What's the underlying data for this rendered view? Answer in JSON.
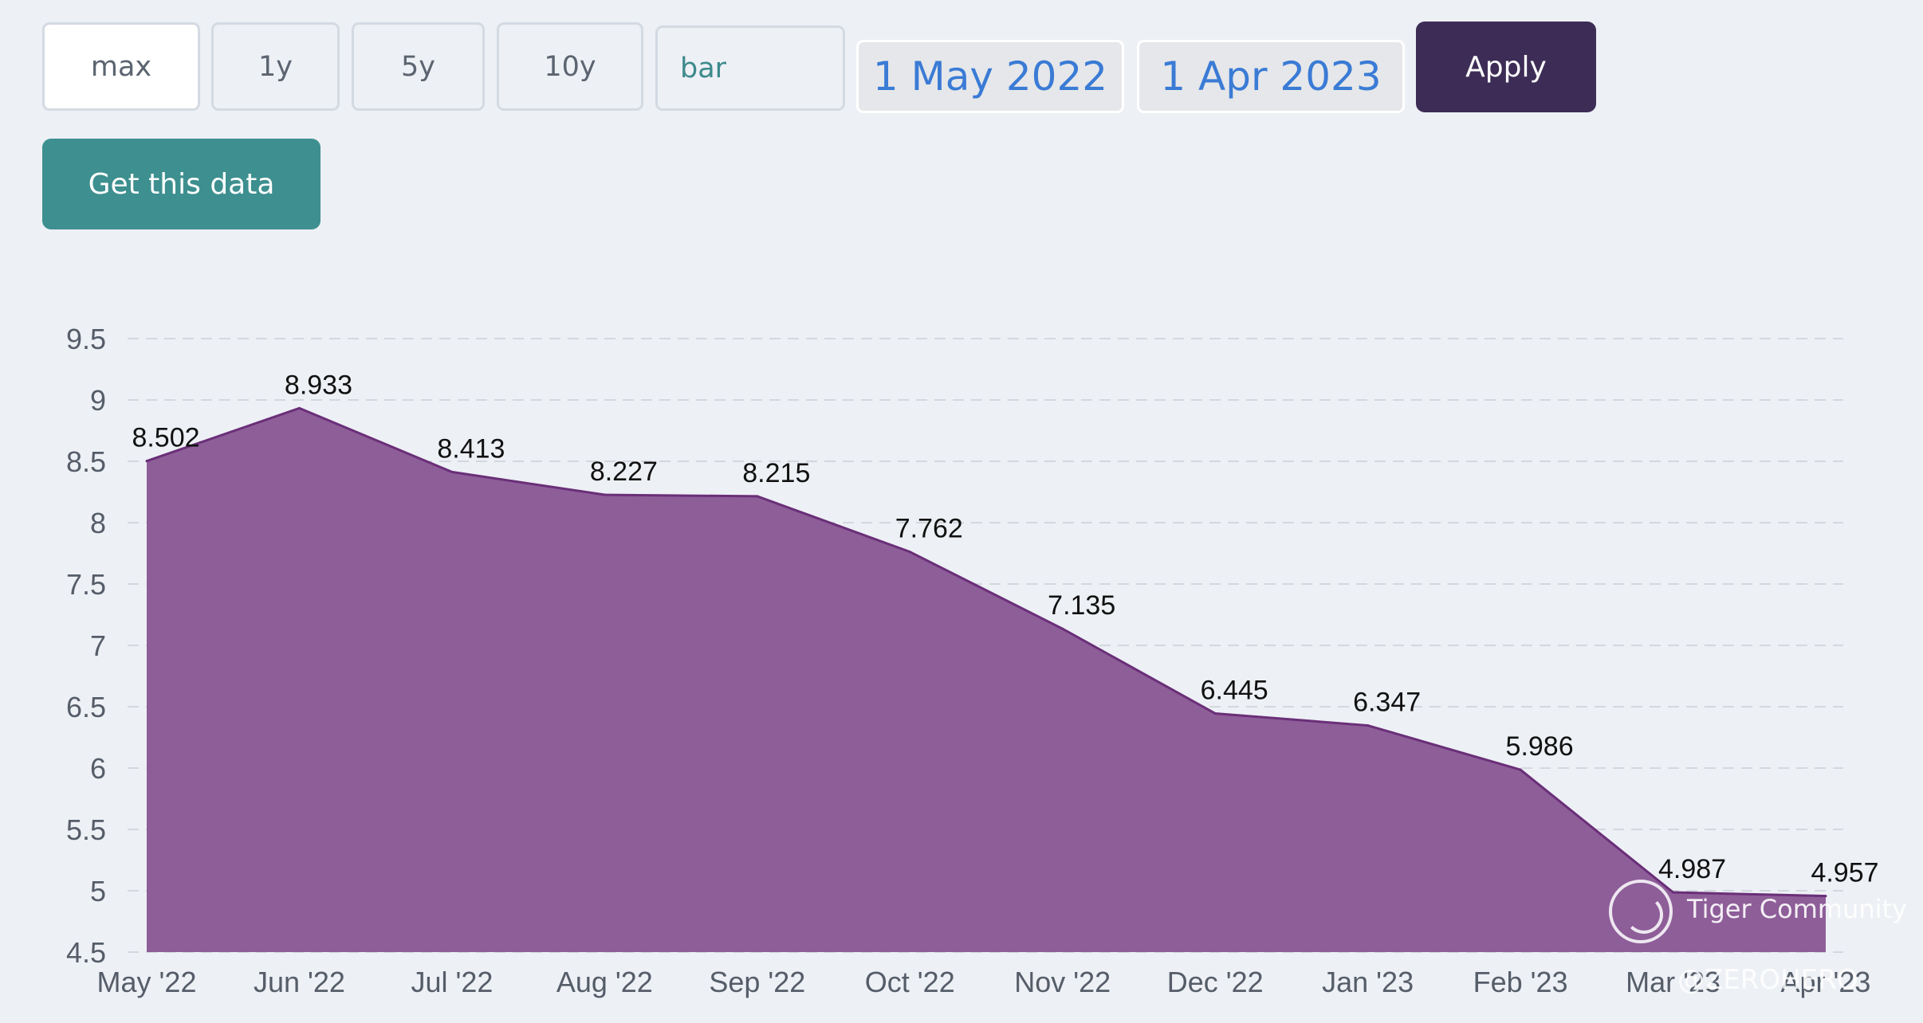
{
  "controls": {
    "ranges": [
      "max",
      "1y",
      "5y",
      "10y"
    ],
    "active_range": "max",
    "chart_type": "bar",
    "start_date": "1 May 2022",
    "end_date": "1 Apr 2023",
    "apply_label": "Apply",
    "get_data_label": "Get this data"
  },
  "colors": {
    "area_fill": "#8e5e99",
    "area_line": "#6a2f78",
    "grid": "#d3d8df",
    "tick_text": "#555d69",
    "label_text": "#111111"
  },
  "chart_data": {
    "type": "area",
    "categories": [
      "May '22",
      "Jun '22",
      "Jul '22",
      "Aug '22",
      "Sep '22",
      "Oct '22",
      "Nov '22",
      "Dec '22",
      "Jan '23",
      "Feb '23",
      "Mar '23",
      "Apr '23"
    ],
    "values": [
      8.502,
      8.933,
      8.413,
      8.227,
      8.215,
      7.762,
      7.135,
      6.445,
      6.347,
      5.986,
      4.987,
      4.957
    ],
    "ylim": [
      4.5,
      9.5
    ],
    "yticks": [
      9.5,
      9,
      8.5,
      8,
      7.5,
      7,
      6.5,
      6,
      5.5,
      5,
      4.5
    ],
    "grid": true,
    "data_labels": true
  },
  "watermark": {
    "brand": "Tiger Community",
    "handle": "@ZEROHERO"
  }
}
